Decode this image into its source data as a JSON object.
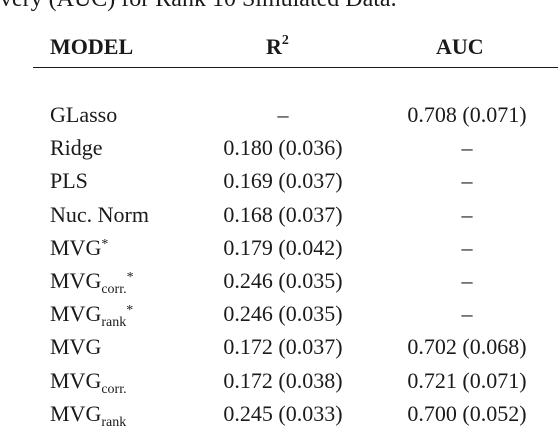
{
  "caption": "very (AUC) for Rank 10 Simulated Data.",
  "header": {
    "model": "MODEL",
    "r2_base": "R",
    "r2_sup": "2",
    "auc": "AUC"
  },
  "rows": [
    {
      "model": "GLasso",
      "model_sub": "",
      "model_star": "",
      "r2": "–",
      "auc": "0.708 (0.071)"
    },
    {
      "model": "Ridge",
      "model_sub": "",
      "model_star": "",
      "r2": "0.180 (0.036)",
      "auc": "–"
    },
    {
      "model": "PLS",
      "model_sub": "",
      "model_star": "",
      "r2": "0.169 (0.037)",
      "auc": "–"
    },
    {
      "model": "Nuc. Norm",
      "model_sub": "",
      "model_star": "",
      "r2": "0.168 (0.037)",
      "auc": "–"
    },
    {
      "model": "MVG",
      "model_sub": "",
      "model_star": "*",
      "r2": "0.179 (0.042)",
      "auc": "–"
    },
    {
      "model": "MVG",
      "model_sub": "corr.",
      "model_star": "*",
      "r2": "0.246 (0.035)",
      "auc": "–"
    },
    {
      "model": "MVG",
      "model_sub": "rank",
      "model_star": "*",
      "r2": "0.246 (0.035)",
      "auc": "–"
    },
    {
      "model": "MVG",
      "model_sub": "",
      "model_star": "",
      "r2": "0.172 (0.037)",
      "auc": "0.702 (0.068)"
    },
    {
      "model": "MVG",
      "model_sub": "corr.",
      "model_star": "",
      "r2": "0.172 (0.038)",
      "auc": "0.721 (0.071)"
    },
    {
      "model": "MVG",
      "model_sub": "rank",
      "model_star": "",
      "r2": "0.245 (0.033)",
      "auc": "0.700 (0.052)"
    }
  ]
}
